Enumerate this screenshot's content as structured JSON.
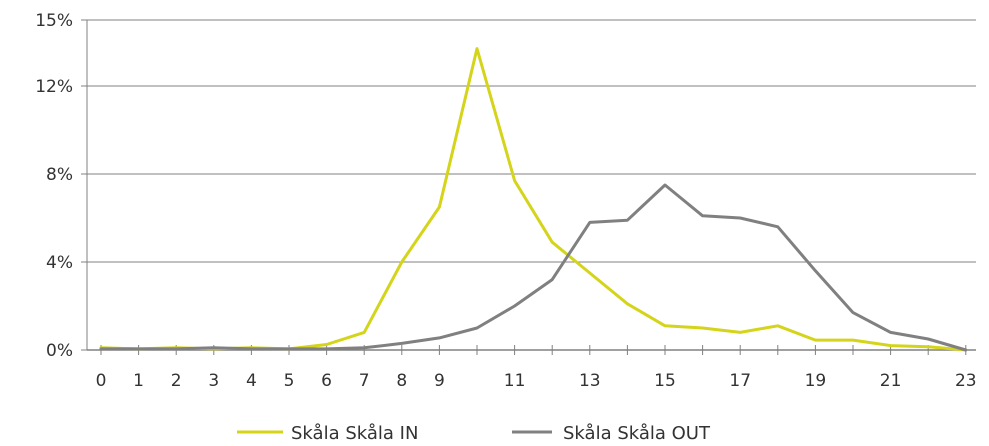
{
  "chart_data": {
    "type": "line",
    "title": "",
    "xlabel": "",
    "ylabel": "",
    "x": [
      0,
      1,
      2,
      3,
      4,
      5,
      6,
      7,
      8,
      9,
      10,
      11,
      12,
      13,
      14,
      15,
      16,
      17,
      18,
      19,
      20,
      21,
      22,
      23
    ],
    "x_tick_labels": [
      "0",
      "1",
      "2",
      "3",
      "4",
      "5",
      "6",
      "7",
      "8",
      "9",
      "11",
      "13",
      "15",
      "17",
      "19",
      "21",
      "23"
    ],
    "y_ticks": [
      0,
      4,
      8,
      12,
      15
    ],
    "y_tick_labels": [
      "0%",
      "4%",
      "8%",
      "12%",
      "15%"
    ],
    "ylim": [
      0,
      15
    ],
    "grid": "horizontal",
    "legend_position": "bottom",
    "series": [
      {
        "name": "Skåla Skåla IN",
        "color": "#d4d41a",
        "values": [
          0.1,
          0.05,
          0.1,
          0.05,
          0.1,
          0.05,
          0.25,
          0.8,
          4.0,
          6.5,
          13.7,
          7.7,
          4.9,
          3.5,
          2.1,
          1.1,
          1.0,
          0.8,
          1.1,
          0.45,
          0.45,
          0.2,
          0.15,
          0.0
        ]
      },
      {
        "name": "Skåla Skåla OUT",
        "color": "#808080",
        "values": [
          0.05,
          0.05,
          0.05,
          0.1,
          0.05,
          0.05,
          0.05,
          0.1,
          0.3,
          0.55,
          1.0,
          2.0,
          3.2,
          5.8,
          5.9,
          7.5,
          6.1,
          6.0,
          5.6,
          3.6,
          1.7,
          0.8,
          0.5,
          0.0
        ]
      }
    ]
  }
}
